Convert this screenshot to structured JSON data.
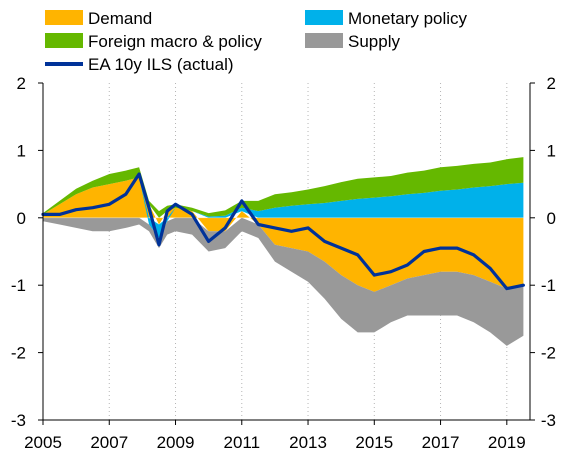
{
  "chart_data": {
    "type": "area",
    "subtype": "stacked-area-with-line",
    "title": "",
    "xlabel": "",
    "ylabel": "",
    "xlim": [
      2005.0,
      2019.7
    ],
    "ylim": [
      -3,
      2
    ],
    "x_ticks": [
      "2005",
      "2007",
      "2009",
      "2011",
      "2013",
      "2015",
      "2017",
      "2019"
    ],
    "y_ticks": [
      "2",
      "1",
      "0",
      "-1",
      "-2",
      "-3"
    ],
    "y_ticks_right": [
      "2",
      "1",
      "0",
      "-1",
      "-2",
      "-3"
    ],
    "grid": {
      "vertical": true,
      "horizontal": false,
      "style": "dotted"
    },
    "legend_placement": "top",
    "x": [
      2005.0,
      2005.5,
      2006.0,
      2006.5,
      2007.0,
      2007.5,
      2007.9,
      2008.2,
      2008.5,
      2008.75,
      2009.0,
      2009.5,
      2010.0,
      2010.5,
      2011.0,
      2011.5,
      2012.0,
      2012.5,
      2013.0,
      2013.5,
      2014.0,
      2014.5,
      2015.0,
      2015.5,
      2016.0,
      2016.5,
      2017.0,
      2017.5,
      2018.0,
      2018.5,
      2019.0,
      2019.5
    ],
    "series": [
      {
        "name": "Demand",
        "kind": "area",
        "color": "#FFB400",
        "values": [
          0.05,
          0.2,
          0.35,
          0.45,
          0.5,
          0.55,
          0.6,
          0.2,
          -0.1,
          0.1,
          0.15,
          0.1,
          -0.2,
          -0.2,
          0.1,
          -0.1,
          -0.4,
          -0.45,
          -0.5,
          -0.65,
          -0.85,
          -1.0,
          -1.1,
          -1.0,
          -0.9,
          -0.85,
          -0.8,
          -0.8,
          -0.85,
          -0.95,
          -1.05,
          -1.0
        ]
      },
      {
        "name": "Monetary policy",
        "kind": "area",
        "color": "#00B1EA",
        "values": [
          0.0,
          0.0,
          0.0,
          0.0,
          0.0,
          0.0,
          0.0,
          -0.1,
          -0.2,
          -0.05,
          0.0,
          0.0,
          0.02,
          0.03,
          0.05,
          0.1,
          0.15,
          0.18,
          0.2,
          0.22,
          0.25,
          0.28,
          0.3,
          0.32,
          0.35,
          0.37,
          0.4,
          0.42,
          0.45,
          0.47,
          0.5,
          0.52
        ]
      },
      {
        "name": "Foreign macro & policy",
        "kind": "area",
        "color": "#65B800",
        "values": [
          0.02,
          0.05,
          0.08,
          0.1,
          0.15,
          0.15,
          0.15,
          0.05,
          0.1,
          0.08,
          0.05,
          0.05,
          0.05,
          0.08,
          0.1,
          0.15,
          0.2,
          0.2,
          0.22,
          0.25,
          0.28,
          0.3,
          0.3,
          0.3,
          0.32,
          0.33,
          0.35,
          0.35,
          0.35,
          0.35,
          0.37,
          0.38
        ]
      },
      {
        "name": "Supply",
        "kind": "area",
        "color": "#999999",
        "values": [
          -0.05,
          -0.1,
          -0.15,
          -0.2,
          -0.2,
          -0.15,
          -0.1,
          -0.1,
          -0.15,
          -0.2,
          -0.2,
          -0.25,
          -0.3,
          -0.25,
          -0.2,
          -0.2,
          -0.25,
          -0.35,
          -0.45,
          -0.55,
          -0.65,
          -0.7,
          -0.6,
          -0.55,
          -0.55,
          -0.6,
          -0.65,
          -0.65,
          -0.7,
          -0.75,
          -0.85,
          -0.75
        ]
      },
      {
        "name": "EA 10y ILS (actual)",
        "kind": "line",
        "color": "#003299",
        "values": [
          0.05,
          0.05,
          0.12,
          0.15,
          0.2,
          0.35,
          0.65,
          0.15,
          -0.4,
          0.1,
          0.2,
          0.05,
          -0.35,
          -0.15,
          0.25,
          -0.1,
          -0.15,
          -0.2,
          -0.15,
          -0.35,
          -0.45,
          -0.55,
          -0.85,
          -0.8,
          -0.7,
          -0.5,
          -0.45,
          -0.45,
          -0.55,
          -0.75,
          -1.05,
          -1.0
        ]
      }
    ],
    "legend": [
      {
        "name": "Demand",
        "color": "#FFB400",
        "marker": "box"
      },
      {
        "name": "Monetary policy",
        "color": "#00B1EA",
        "marker": "box"
      },
      {
        "name": "Foreign macro & policy",
        "color": "#65B800",
        "marker": "box"
      },
      {
        "name": "Supply",
        "color": "#999999",
        "marker": "box"
      },
      {
        "name": "EA 10y ILS (actual)",
        "color": "#003299",
        "marker": "line"
      }
    ]
  }
}
